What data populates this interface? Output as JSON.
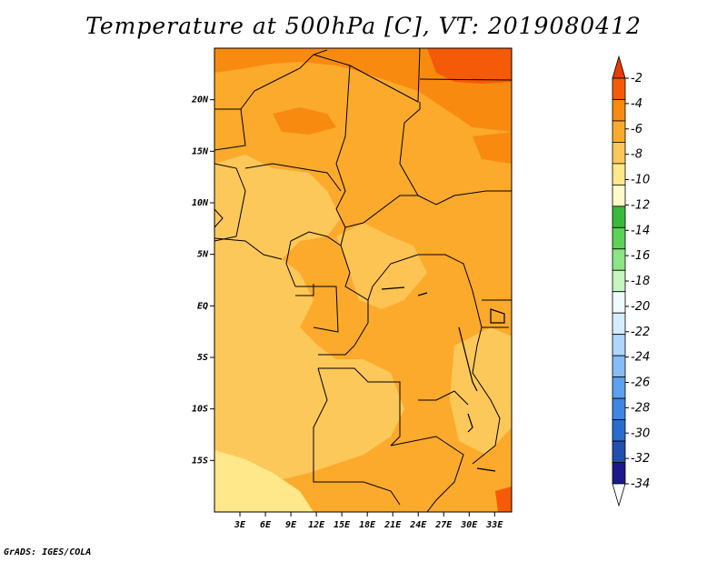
{
  "title": "Temperature at 500hPa [C], VT: 2019080412",
  "credit": "GrADS: IGES/COLA",
  "map": {
    "lon_range": [
      0,
      35
    ],
    "lat_range": [
      -20,
      25
    ],
    "lat_ticks": [
      {
        "value": 20,
        "label": "20N"
      },
      {
        "value": 15,
        "label": "15N"
      },
      {
        "value": 10,
        "label": "10N"
      },
      {
        "value": 5,
        "label": "5N"
      },
      {
        "value": 0,
        "label": "EQ"
      },
      {
        "value": -5,
        "label": "5S"
      },
      {
        "value": -10,
        "label": "10S"
      },
      {
        "value": -15,
        "label": "15S"
      }
    ],
    "lon_ticks": [
      {
        "value": 3,
        "label": "3E"
      },
      {
        "value": 6,
        "label": "6E"
      },
      {
        "value": 9,
        "label": "9E"
      },
      {
        "value": 12,
        "label": "12E"
      },
      {
        "value": 15,
        "label": "15E"
      },
      {
        "value": 18,
        "label": "18E"
      },
      {
        "value": 21,
        "label": "21E"
      },
      {
        "value": 24,
        "label": "24E"
      },
      {
        "value": 27,
        "label": "27E"
      },
      {
        "value": 30,
        "label": "30E"
      },
      {
        "value": 33,
        "label": "33E"
      }
    ]
  },
  "colorbar": {
    "colors": [
      "#fefefe",
      "#1a1a8c",
      "#1f4fb0",
      "#2a6bd0",
      "#3d86e4",
      "#5ba1f0",
      "#86bcf7",
      "#b0d6fb",
      "#d6ecfd",
      "#f0faff",
      "#c5f5c0",
      "#8ce584",
      "#5cd356",
      "#38bb3a",
      "#fffac8",
      "#fee88a",
      "#fdc85a",
      "#fbaa2c",
      "#f98a10",
      "#f55a08",
      "#e83a05"
    ],
    "labels": [
      "-34",
      "-32",
      "-30",
      "-28",
      "-26",
      "-24",
      "-22",
      "-20",
      "-18",
      "-16",
      "-14",
      "-12",
      "-10",
      "-8",
      "-6",
      "-4",
      "-2"
    ]
  }
}
